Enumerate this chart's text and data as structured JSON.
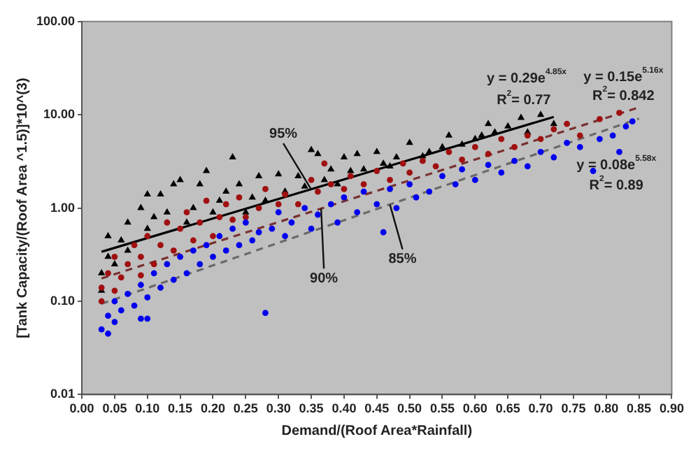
{
  "chart_data": {
    "type": "scatter",
    "xlabel": "Demand/(Roof Area*Rainfall)",
    "ylabel": "[Tank Capacity/(Roof Area ^1.5)]*10^(3)",
    "log": "y",
    "grid": false,
    "legend": false,
    "xlim": [
      0,
      0.9
    ],
    "ylim": [
      0.01,
      100
    ],
    "xticks": [
      {
        "value": 0,
        "label": "0.00"
      },
      {
        "value": 0.05,
        "label": "0.05"
      },
      {
        "value": 0.1,
        "label": "0.10"
      },
      {
        "value": 0.15,
        "label": "0.15"
      },
      {
        "value": 0.2,
        "label": "0.20"
      },
      {
        "value": 0.25,
        "label": "0.25"
      },
      {
        "value": 0.3,
        "label": "0.30"
      },
      {
        "value": 0.35,
        "label": "0.35"
      },
      {
        "value": 0.4,
        "label": "0.40"
      },
      {
        "value": 0.45,
        "label": "0.45"
      },
      {
        "value": 0.5,
        "label": "0.50"
      },
      {
        "value": 0.55,
        "label": "0.55"
      },
      {
        "value": 0.6,
        "label": "0.60"
      },
      {
        "value": 0.65,
        "label": "0.65"
      },
      {
        "value": 0.7,
        "label": "0.70"
      },
      {
        "value": 0.75,
        "label": "0.75"
      },
      {
        "value": 0.8,
        "label": "0.80"
      },
      {
        "value": 0.85,
        "label": "0.85"
      },
      {
        "value": 0.9,
        "label": "0.90"
      }
    ],
    "yticks": [
      {
        "value": 0.01,
        "label": "0.01"
      },
      {
        "value": 0.1,
        "label": "0.10"
      },
      {
        "value": 1,
        "label": "1.00"
      },
      {
        "value": 10,
        "label": "10.00"
      },
      {
        "value": 100,
        "label": "100.00"
      }
    ],
    "series": [
      {
        "type": "scatter",
        "marker": "circle",
        "color": "#0000ee",
        "x": [
          0.03,
          0.04,
          0.04,
          0.05,
          0.05,
          0.06,
          0.07,
          0.08,
          0.09,
          0.09,
          0.1,
          0.1,
          0.11,
          0.12,
          0.13,
          0.14,
          0.15,
          0.16,
          0.17,
          0.18,
          0.19,
          0.2,
          0.21,
          0.22,
          0.23,
          0.24,
          0.25,
          0.26,
          0.27,
          0.28,
          0.29,
          0.3,
          0.31,
          0.32,
          0.34,
          0.35,
          0.36,
          0.38,
          0.39,
          0.4,
          0.42,
          0.43,
          0.45,
          0.46,
          0.47,
          0.48,
          0.5,
          0.51,
          0.53,
          0.55,
          0.57,
          0.58,
          0.6,
          0.62,
          0.64,
          0.66,
          0.68,
          0.7,
          0.72,
          0.74,
          0.76,
          0.78,
          0.79,
          0.81,
          0.82,
          0.83,
          0.84
        ],
        "values": [
          0.05,
          0.045,
          0.07,
          0.06,
          0.1,
          0.08,
          0.12,
          0.09,
          0.065,
          0.15,
          0.11,
          0.065,
          0.2,
          0.14,
          0.25,
          0.17,
          0.3,
          0.2,
          0.35,
          0.25,
          0.4,
          0.3,
          0.5,
          0.35,
          0.6,
          0.4,
          0.7,
          0.45,
          0.55,
          0.075,
          0.6,
          0.9,
          0.5,
          0.7,
          1.0,
          0.6,
          0.85,
          1.1,
          0.7,
          1.3,
          0.9,
          1.5,
          1.1,
          0.55,
          1.6,
          1.0,
          1.8,
          1.3,
          1.5,
          2.2,
          1.8,
          2.6,
          2.0,
          2.9,
          2.4,
          3.2,
          2.8,
          4.0,
          3.5,
          5.0,
          4.5,
          2.5,
          5.5,
          6.0,
          4.0,
          7.5,
          8.5
        ]
      },
      {
        "type": "scatter",
        "marker": "circle",
        "color": "#a01010",
        "x": [
          0.03,
          0.03,
          0.04,
          0.05,
          0.05,
          0.06,
          0.07,
          0.08,
          0.09,
          0.09,
          0.1,
          0.11,
          0.12,
          0.13,
          0.14,
          0.15,
          0.16,
          0.17,
          0.18,
          0.19,
          0.2,
          0.21,
          0.22,
          0.23,
          0.24,
          0.25,
          0.27,
          0.28,
          0.3,
          0.31,
          0.33,
          0.35,
          0.36,
          0.37,
          0.38,
          0.4,
          0.41,
          0.43,
          0.45,
          0.47,
          0.49,
          0.5,
          0.52,
          0.54,
          0.56,
          0.58,
          0.6,
          0.62,
          0.64,
          0.66,
          0.68,
          0.7,
          0.72,
          0.74,
          0.76,
          0.79,
          0.82
        ],
        "values": [
          0.1,
          0.14,
          0.2,
          0.13,
          0.3,
          0.18,
          0.25,
          0.4,
          0.19,
          0.3,
          0.5,
          0.25,
          0.4,
          0.7,
          0.35,
          0.6,
          0.9,
          0.45,
          0.7,
          1.2,
          0.5,
          0.8,
          1.1,
          0.75,
          1.3,
          0.8,
          1.0,
          1.6,
          1.1,
          1.4,
          1.1,
          2.0,
          1.5,
          3.0,
          1.8,
          1.6,
          2.2,
          1.8,
          2.5,
          2.0,
          3.0,
          2.4,
          3.2,
          2.8,
          4.0,
          3.3,
          4.5,
          3.8,
          5.5,
          4.5,
          6.0,
          5.5,
          7.0,
          8.0,
          6.0,
          9.0,
          10.5
        ]
      },
      {
        "type": "scatter",
        "marker": "triangle",
        "color": "#000000",
        "x": [
          0.03,
          0.03,
          0.04,
          0.04,
          0.05,
          0.06,
          0.07,
          0.07,
          0.09,
          0.1,
          0.1,
          0.11,
          0.12,
          0.13,
          0.14,
          0.15,
          0.16,
          0.17,
          0.18,
          0.19,
          0.2,
          0.21,
          0.22,
          0.23,
          0.24,
          0.25,
          0.26,
          0.27,
          0.28,
          0.3,
          0.31,
          0.33,
          0.34,
          0.35,
          0.36,
          0.37,
          0.38,
          0.39,
          0.4,
          0.41,
          0.42,
          0.43,
          0.45,
          0.46,
          0.47,
          0.48,
          0.5,
          0.52,
          0.53,
          0.55,
          0.56,
          0.58,
          0.6,
          0.61,
          0.62,
          0.63,
          0.65,
          0.67,
          0.68,
          0.7,
          0.72
        ],
        "values": [
          0.2,
          0.13,
          0.3,
          0.5,
          0.25,
          0.45,
          0.7,
          0.35,
          1.0,
          1.4,
          0.6,
          0.8,
          1.4,
          0.9,
          1.8,
          2.0,
          0.7,
          1.0,
          1.8,
          2.5,
          0.9,
          1.2,
          1.5,
          3.5,
          1.8,
          0.9,
          1.3,
          2.2,
          1.2,
          2.3,
          1.5,
          2.2,
          1.7,
          4.2,
          3.8,
          2.0,
          2.6,
          1.8,
          3.5,
          2.5,
          3.8,
          2.6,
          4.0,
          3.0,
          2.8,
          3.5,
          5.0,
          3.6,
          4.0,
          4.5,
          6.0,
          4.8,
          5.5,
          6.0,
          8.0,
          6.5,
          7.5,
          9.3,
          6.5,
          10.0,
          8.0
        ]
      },
      {
        "type": "line",
        "line_style": "dashed",
        "marker": "none",
        "color": "#6a6a6a",
        "x": [
          0.03,
          0.85
        ],
        "values": [
          0.094,
          9.1
        ]
      },
      {
        "type": "line",
        "line_style": "dashed",
        "marker": "none",
        "color": "#7a3030",
        "x": [
          0.03,
          0.85
        ],
        "values": [
          0.176,
          12.0
        ]
      },
      {
        "type": "line",
        "line_style": "solid",
        "marker": "none",
        "color": "#000000",
        "x": [
          0.03,
          0.72
        ],
        "values": [
          0.34,
          9.5
        ]
      }
    ],
    "annotations": [
      {
        "text": "95%",
        "x": 0.35,
        "y": 1.58
      },
      {
        "text": "90%",
        "x": 0.365,
        "y": 0.99
      },
      {
        "text": "85%",
        "x": 0.47,
        "y": 1.09
      },
      "y = 0.29e$^{4.85x}$",
      "R$^{2}$= 0.77",
      "y = 0.15e$^{5.16x}$",
      "R$^{2}$= 0.842",
      "y = 0.08e$^{5.58x}$",
      "R$^{2}$= 0.89"
    ]
  }
}
